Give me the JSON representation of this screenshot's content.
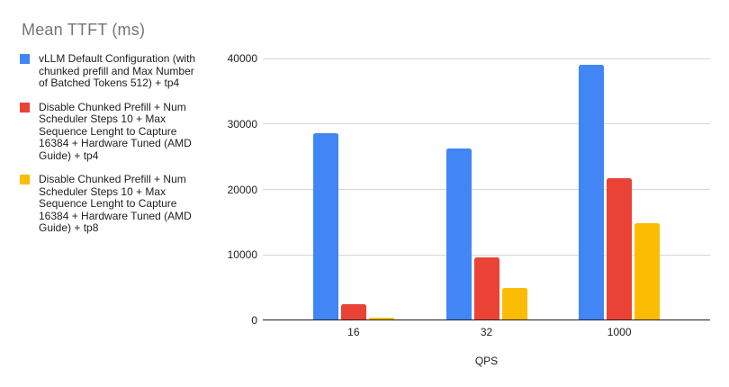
{
  "chart_data": {
    "type": "bar",
    "title": "Mean TTFT (ms)",
    "categories": [
      "16",
      "32",
      "1000"
    ],
    "series": [
      {
        "name": "vLLM Default Configuration (with chunked prefill and Max Number of Batched Tokens 512) + tp4",
        "color": "#4285F4",
        "values": [
          28400,
          26000,
          38800
        ]
      },
      {
        "name": "Disable Chunked Prefill + Num Scheduler Steps 10 + Max Sequence Lenght to Capture 16384 + Hardware Tuned (AMD Guide) + tp4",
        "color": "#EA4335",
        "values": [
          2300,
          9400,
          21500
        ]
      },
      {
        "name": "Disable Chunked Prefill + Num Scheduler Steps 10 + Max Sequence Lenght to Capture 16384 + Hardware Tuned (AMD Guide) + tp8",
        "color": "#FBBC04",
        "values": [
          200,
          4700,
          14600
        ]
      }
    ],
    "xlabel": "QPS",
    "ylabel": "",
    "ylim": [
      0,
      40000
    ],
    "yticks": [
      0,
      10000,
      20000,
      30000,
      40000
    ],
    "grid": true,
    "legend_position": "left",
    "ui_colors": {
      "background": "#ffffff",
      "title_text": "#757575",
      "legend_text": "#212121",
      "axis_text": "#212121",
      "gridline": "#d6d6d6",
      "axis_line": "#1f1f1f"
    }
  }
}
